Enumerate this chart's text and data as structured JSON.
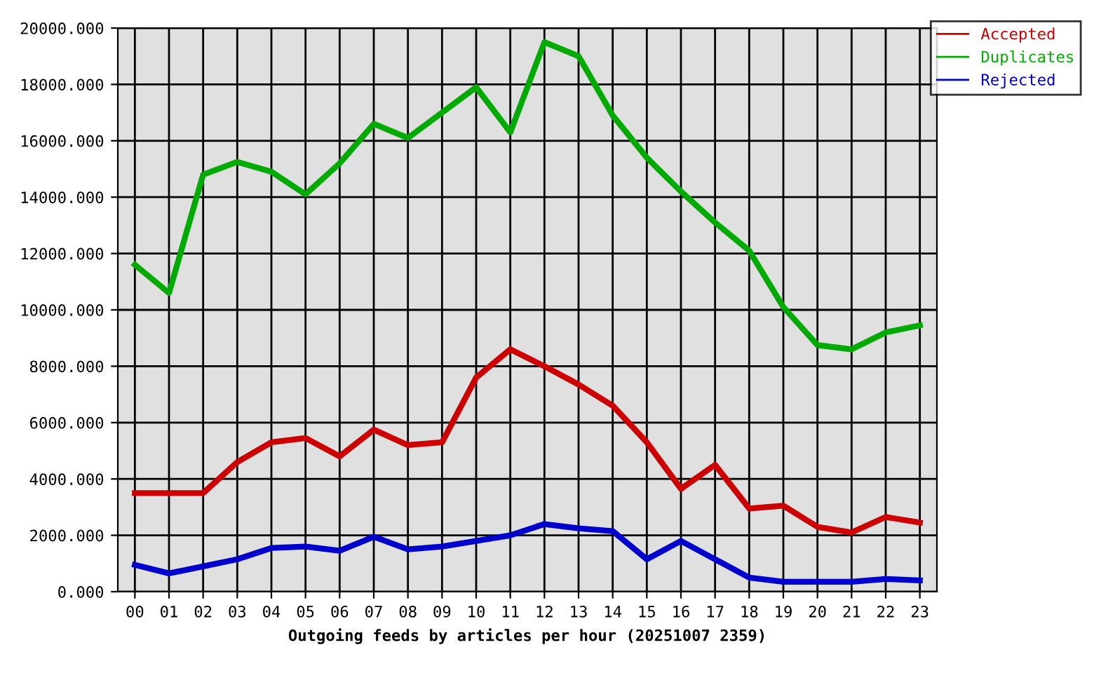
{
  "chart_data": {
    "type": "line",
    "xlabel": "Outgoing feeds by articles per hour (20251007 2359)",
    "categories": [
      "00",
      "01",
      "02",
      "03",
      "04",
      "05",
      "06",
      "07",
      "08",
      "09",
      "10",
      "11",
      "12",
      "13",
      "14",
      "15",
      "16",
      "17",
      "18",
      "19",
      "20",
      "21",
      "22",
      "23"
    ],
    "series": [
      {
        "name": "Accepted",
        "color": "#cc0000",
        "values": [
          3500,
          3500,
          3500,
          4600,
          5300,
          5450,
          4800,
          5750,
          5200,
          5300,
          7600,
          8600,
          8000,
          7350,
          6600,
          5300,
          3650,
          4500,
          2950,
          3050,
          2300,
          2100,
          2650,
          2450
        ]
      },
      {
        "name": "Duplicates",
        "color": "#00aa00",
        "values": [
          11600,
          10600,
          14800,
          15250,
          14900,
          14100,
          15200,
          16600,
          16100,
          17000,
          17900,
          16300,
          19500,
          19000,
          16900,
          15400,
          14200,
          13100,
          12100,
          10100,
          8750,
          8600,
          9200,
          9450
        ]
      },
      {
        "name": "Rejected",
        "color": "#0000cc",
        "values": [
          950,
          650,
          900,
          1150,
          1550,
          1600,
          1450,
          1950,
          1500,
          1600,
          1800,
          2000,
          2400,
          2250,
          2150,
          1150,
          1800,
          1150,
          500,
          350,
          350,
          350,
          450,
          400
        ]
      }
    ],
    "ylim": [
      0,
      20000
    ],
    "yticks": [
      {
        "value": 0,
        "label": "0.000"
      },
      {
        "value": 2000,
        "label": "2000.000"
      },
      {
        "value": 4000,
        "label": "4000.000"
      },
      {
        "value": 6000,
        "label": "6000.000"
      },
      {
        "value": 8000,
        "label": "8000.000"
      },
      {
        "value": 10000,
        "label": "10000.000"
      },
      {
        "value": 12000,
        "label": "12000.000"
      },
      {
        "value": 14000,
        "label": "14000.000"
      },
      {
        "value": 16000,
        "label": "16000.000"
      },
      {
        "value": 18000,
        "label": "18000.000"
      },
      {
        "value": 20000,
        "label": "20000.000"
      }
    ],
    "grid": true,
    "legend": "top right",
    "marker": "none",
    "line_style": "solid"
  }
}
